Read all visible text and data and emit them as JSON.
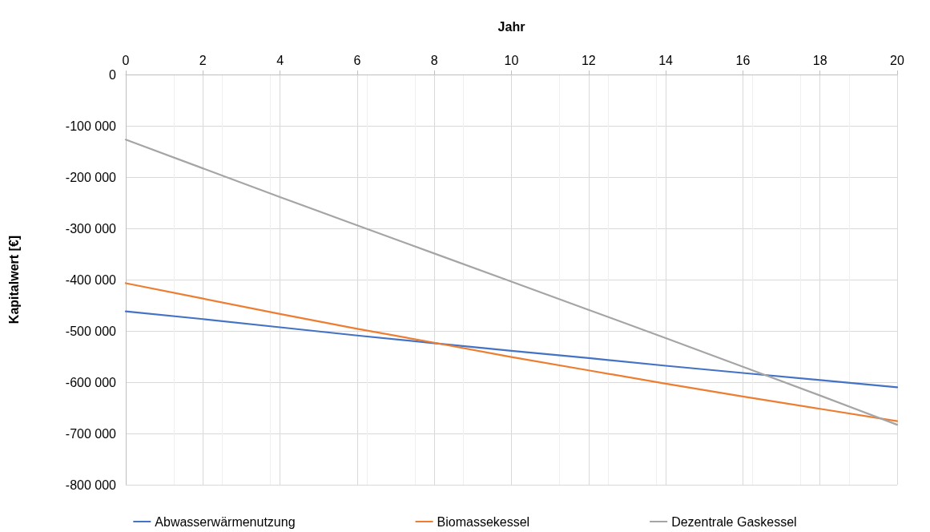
{
  "chart_data": {
    "type": "line",
    "xlabel": "Jahr",
    "ylabel": "Kapitalwert [€]",
    "x": [
      0,
      2,
      4,
      6,
      8,
      10,
      12,
      14,
      16,
      18,
      20
    ],
    "series": [
      {
        "name": "Abwasserwärmenutzung",
        "color": "#4472c4",
        "values": [
          -462000,
          -477000,
          -493000,
          -509000,
          -524000,
          -539000,
          -553000,
          -568000,
          -582000,
          -596000,
          -610000
        ]
      },
      {
        "name": "Biomassekessel",
        "color": "#ed7d31",
        "values": [
          -407000,
          -437000,
          -467000,
          -496000,
          -523000,
          -551000,
          -577000,
          -603000,
          -628000,
          -652000,
          -676000
        ]
      },
      {
        "name": "Dezentrale Gaskessel",
        "color": "#a5a5a5",
        "values": [
          -127000,
          -183000,
          -239000,
          -294000,
          -349000,
          -404000,
          -459000,
          -514000,
          -570000,
          -626000,
          -683000
        ]
      }
    ],
    "xlim": [
      0,
      20
    ],
    "xticks": [
      0,
      2,
      4,
      6,
      8,
      10,
      12,
      14,
      16,
      18,
      20
    ],
    "ylim": [
      -800000,
      0
    ],
    "yticks": [
      {
        "value": -800000,
        "label": "-800 000"
      },
      {
        "value": -700000,
        "label": "-700 000"
      },
      {
        "value": -600000,
        "label": "-600 000"
      },
      {
        "value": -500000,
        "label": "-500 000"
      },
      {
        "value": -400000,
        "label": "-400 000"
      },
      {
        "value": -300000,
        "label": "-300 000"
      },
      {
        "value": -200000,
        "label": "-200 000"
      },
      {
        "value": -100000,
        "label": "-100 000"
      },
      {
        "value": 0,
        "label": "0"
      }
    ],
    "grid": true,
    "legend": "bottom",
    "marker": "none",
    "line_style": "solid"
  }
}
